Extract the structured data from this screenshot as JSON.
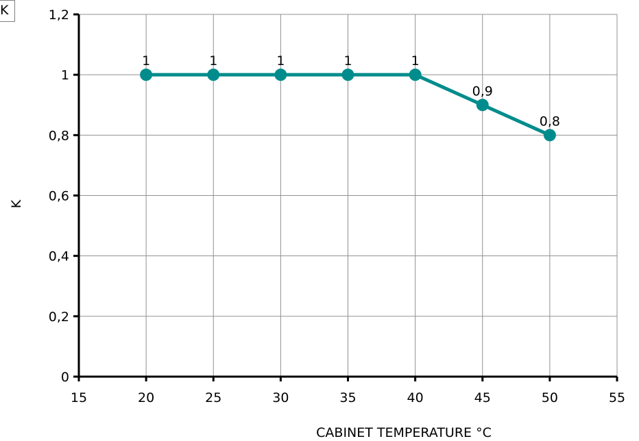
{
  "legend": {
    "label": "K"
  },
  "chart_data": {
    "type": "line",
    "xlabel": "CABINET TEMPERATURE °C",
    "ylabel": "K",
    "xlim": [
      15,
      55
    ],
    "ylim": [
      0,
      1.2
    ],
    "x_ticks": [
      "15",
      "20",
      "25",
      "30",
      "35",
      "40",
      "45",
      "50",
      "55"
    ],
    "y_ticks": [
      "0",
      "0,2",
      "0,4",
      "0,6",
      "0,8",
      "1",
      "1,2"
    ],
    "grid": true,
    "series": [
      {
        "color": "#008c8c",
        "x": [
          20,
          25,
          30,
          35,
          40,
          45,
          50
        ],
        "y": [
          1,
          1,
          1,
          1,
          1,
          0.9,
          0.8
        ],
        "labels": [
          "1",
          "1",
          "1",
          "1",
          "1",
          "0,9",
          "0,8"
        ]
      }
    ]
  }
}
